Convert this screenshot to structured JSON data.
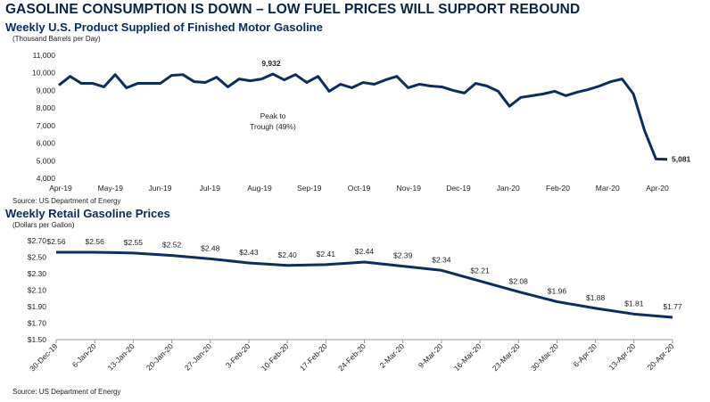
{
  "title": "GASOLINE CONSUMPTION IS DOWN – LOW FUEL PRICES WILL SUPPORT REBOUND",
  "colors": {
    "title": "#0c2340",
    "line": "#0c2d5e"
  },
  "chart_data": [
    {
      "type": "line",
      "title": "Weekly U.S. Product Supplied of Finished Motor Gasoline",
      "unit_label": "(Thousand Barrels per Day)",
      "source": "Source: US Department of Energy",
      "ylim": [
        4000,
        11000
      ],
      "y_ticks": [
        "4,000",
        "5,000",
        "6,000",
        "7,000",
        "8,000",
        "9,000",
        "10,000",
        "11,000"
      ],
      "x_tick_labels": [
        "Apr-19",
        "May-19",
        "Jun-19",
        "Jul-19",
        "Aug-19",
        "Sep-19",
        "Oct-19",
        "Nov-19",
        "Dec-19",
        "Jan-20",
        "Feb-20",
        "Mar-20",
        "Apr-20"
      ],
      "series": [
        {
          "values": [
            9300,
            9800,
            9400,
            9400,
            9200,
            9900,
            9150,
            9400,
            9400,
            9400,
            9850,
            9900,
            9500,
            9450,
            9750,
            9200,
            9650,
            9550,
            9650,
            9932,
            9600,
            9900,
            9450,
            9800,
            8950,
            9350,
            9150,
            9450,
            9350,
            9600,
            9800,
            9150,
            9350,
            9250,
            9200,
            9000,
            8850,
            9400,
            9250,
            8950,
            8100,
            8600,
            8700,
            8800,
            8950,
            8700,
            8900,
            9050,
            9250,
            9500,
            9650,
            8800,
            6700,
            5100,
            5081
          ]
        }
      ],
      "annotations": {
        "max_label": "9,932",
        "last_label": "5,081",
        "note_line1": "Peak to",
        "note_line2": "Trough (49%)"
      }
    },
    {
      "type": "line",
      "title": "Weekly Retail Gasoline Prices",
      "unit_label": "(Dollars per Gallon)",
      "source": "Source: US Department of Energy",
      "ylim": [
        1.5,
        2.7
      ],
      "y_ticks": [
        "$1.50",
        "$1.70",
        "$1.90",
        "$2.10",
        "$2.30",
        "$2.50",
        "$2.70"
      ],
      "categories": [
        "30-Dec-19",
        "6-Jan-20",
        "13-Jan-20",
        "20-Jan-20",
        "27-Jan-20",
        "3-Feb-20",
        "10-Feb-20",
        "17-Feb-20",
        "24-Feb-20",
        "2-Mar-20",
        "9-Mar-20",
        "16-Mar-20",
        "23-Mar-20",
        "30-Mar-20",
        "6-Apr-20",
        "13-Apr-20",
        "20-Apr-20"
      ],
      "values": [
        2.56,
        2.56,
        2.55,
        2.52,
        2.48,
        2.43,
        2.4,
        2.41,
        2.44,
        2.39,
        2.34,
        2.21,
        2.08,
        1.96,
        1.88,
        1.81,
        1.77
      ],
      "data_labels": [
        "$2.56",
        "$2.56",
        "$2.55",
        "$2.52",
        "$2.48",
        "$2.43",
        "$2.40",
        "$2.41",
        "$2.44",
        "$2.39",
        "$2.34",
        "$2.21",
        "$2.08",
        "$1.96",
        "$1.88",
        "$1.81",
        "$1.77"
      ]
    }
  ]
}
